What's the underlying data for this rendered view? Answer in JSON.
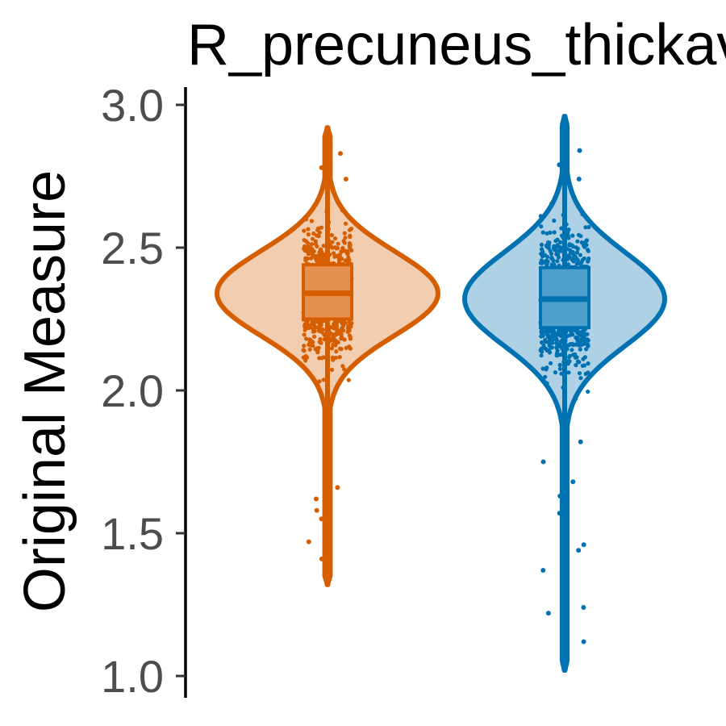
{
  "chart_data": {
    "type": "violin",
    "title": "R_precuneus_thickavg",
    "xlabel": "",
    "ylabel": "Original Measure",
    "ylim": [
      1.0,
      3.0
    ],
    "yticks": [
      1.0,
      1.5,
      2.0,
      2.5,
      3.0
    ],
    "ytick_labels": [
      "1.0",
      "1.5",
      "2.0",
      "2.5",
      "3.0"
    ],
    "grid": false,
    "legend": "none",
    "series": [
      {
        "color": "#d55e00",
        "fill": "#f2cdb0",
        "box_fill": "#e69150",
        "min": 1.32,
        "max": 2.92,
        "q1": 2.25,
        "median": 2.34,
        "q3": 2.44,
        "mode": 2.34,
        "n_points": 900,
        "outliers": [
          1.41,
          1.47,
          1.5,
          1.55,
          1.58,
          1.62,
          1.66,
          1.71,
          1.82,
          2.74,
          2.78,
          2.83
        ]
      },
      {
        "color": "#0072b2",
        "fill": "#afd1e6",
        "box_fill": "#4e9fcc",
        "min": 1.02,
        "max": 2.96,
        "q1": 2.22,
        "median": 2.32,
        "q3": 2.43,
        "mode": 2.32,
        "n_points": 900,
        "outliers": [
          1.12,
          1.22,
          1.24,
          1.37,
          1.44,
          1.46,
          1.55,
          1.57,
          1.63,
          1.68,
          1.75,
          1.82,
          2.74,
          2.79,
          2.84,
          2.86
        ]
      }
    ]
  }
}
